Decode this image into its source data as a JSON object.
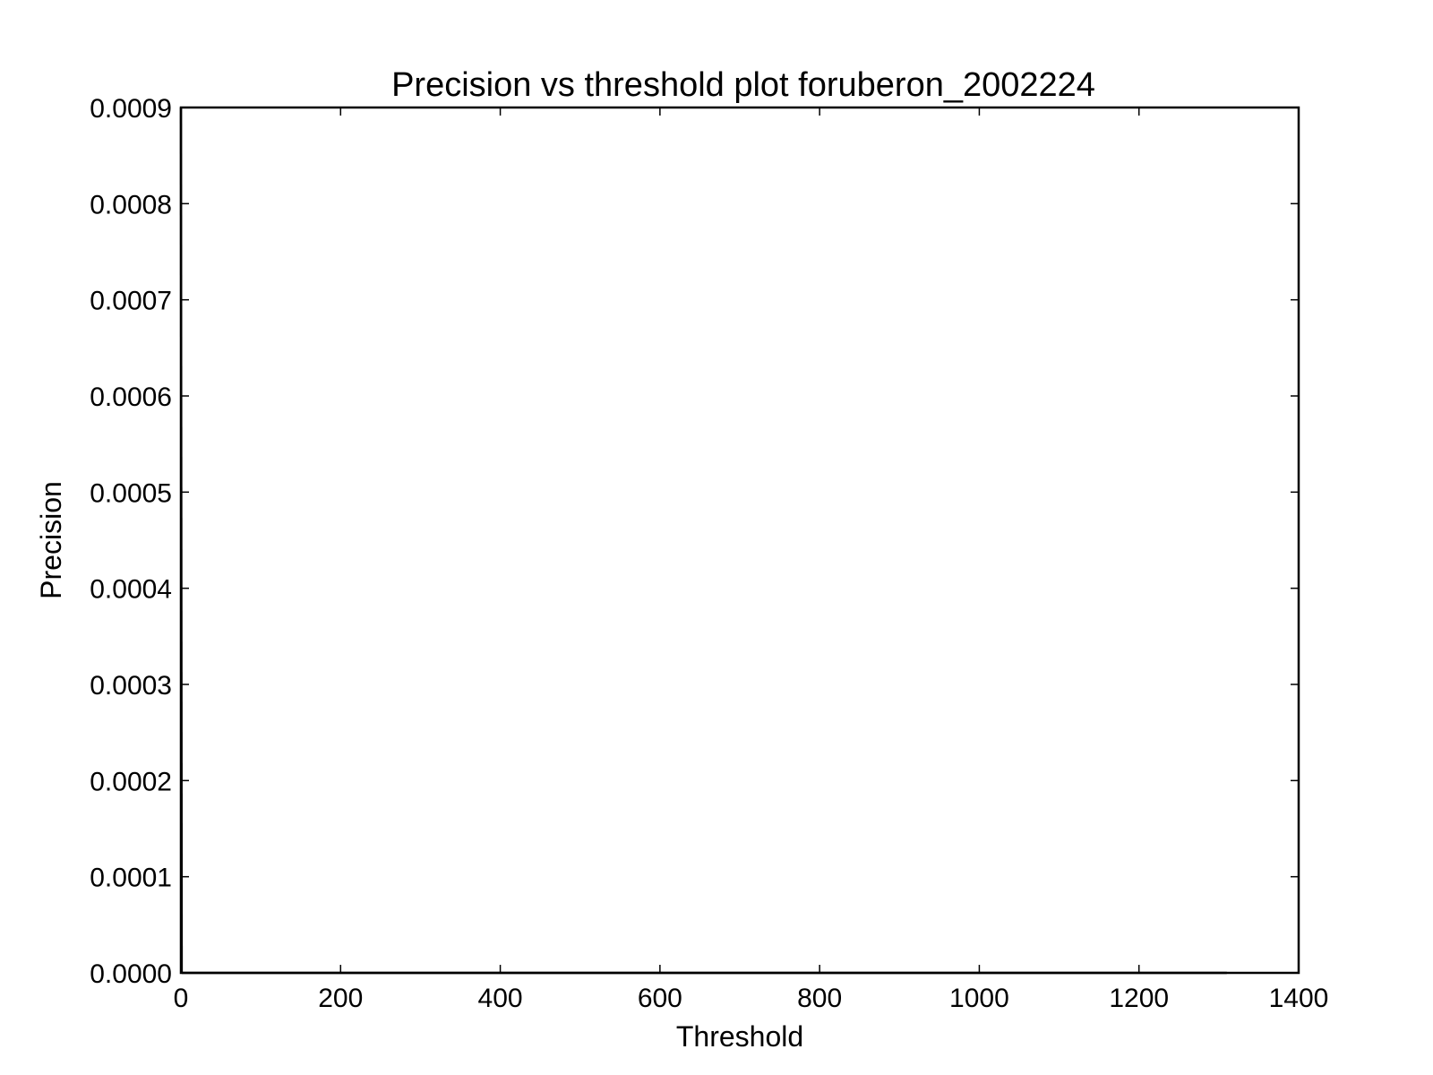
{
  "chart_data": {
    "type": "line",
    "title": "Precision vs threshold plot foruberon_2002224",
    "xlabel": "Threshold",
    "ylabel": "Precision",
    "xlim": [
      0,
      1400
    ],
    "ylim": [
      0.0,
      0.0009
    ],
    "x_ticks": [
      0,
      200,
      400,
      600,
      800,
      1000,
      1200,
      1400
    ],
    "x_tick_labels": [
      "0",
      "200",
      "400",
      "600",
      "800",
      "1000",
      "1200",
      "1400"
    ],
    "y_ticks": [
      0.0,
      0.0001,
      0.0002,
      0.0003,
      0.0004,
      0.0005,
      0.0006,
      0.0007,
      0.0008,
      0.0009
    ],
    "y_tick_labels": [
      "0.0000",
      "0.0001",
      "0.0002",
      "0.0003",
      "0.0004",
      "0.0005",
      "0.0006",
      "0.0007",
      "0.0008",
      "0.0009"
    ],
    "grid": false,
    "legend": "none",
    "series": [
      {
        "color": "#000000",
        "x": [
          0,
          1
        ],
        "y": [
          0.0009,
          0.0
        ]
      },
      {
        "color": "#000000",
        "x": [
          1,
          1310
        ],
        "y": [
          0.0,
          0.0
        ]
      }
    ]
  }
}
